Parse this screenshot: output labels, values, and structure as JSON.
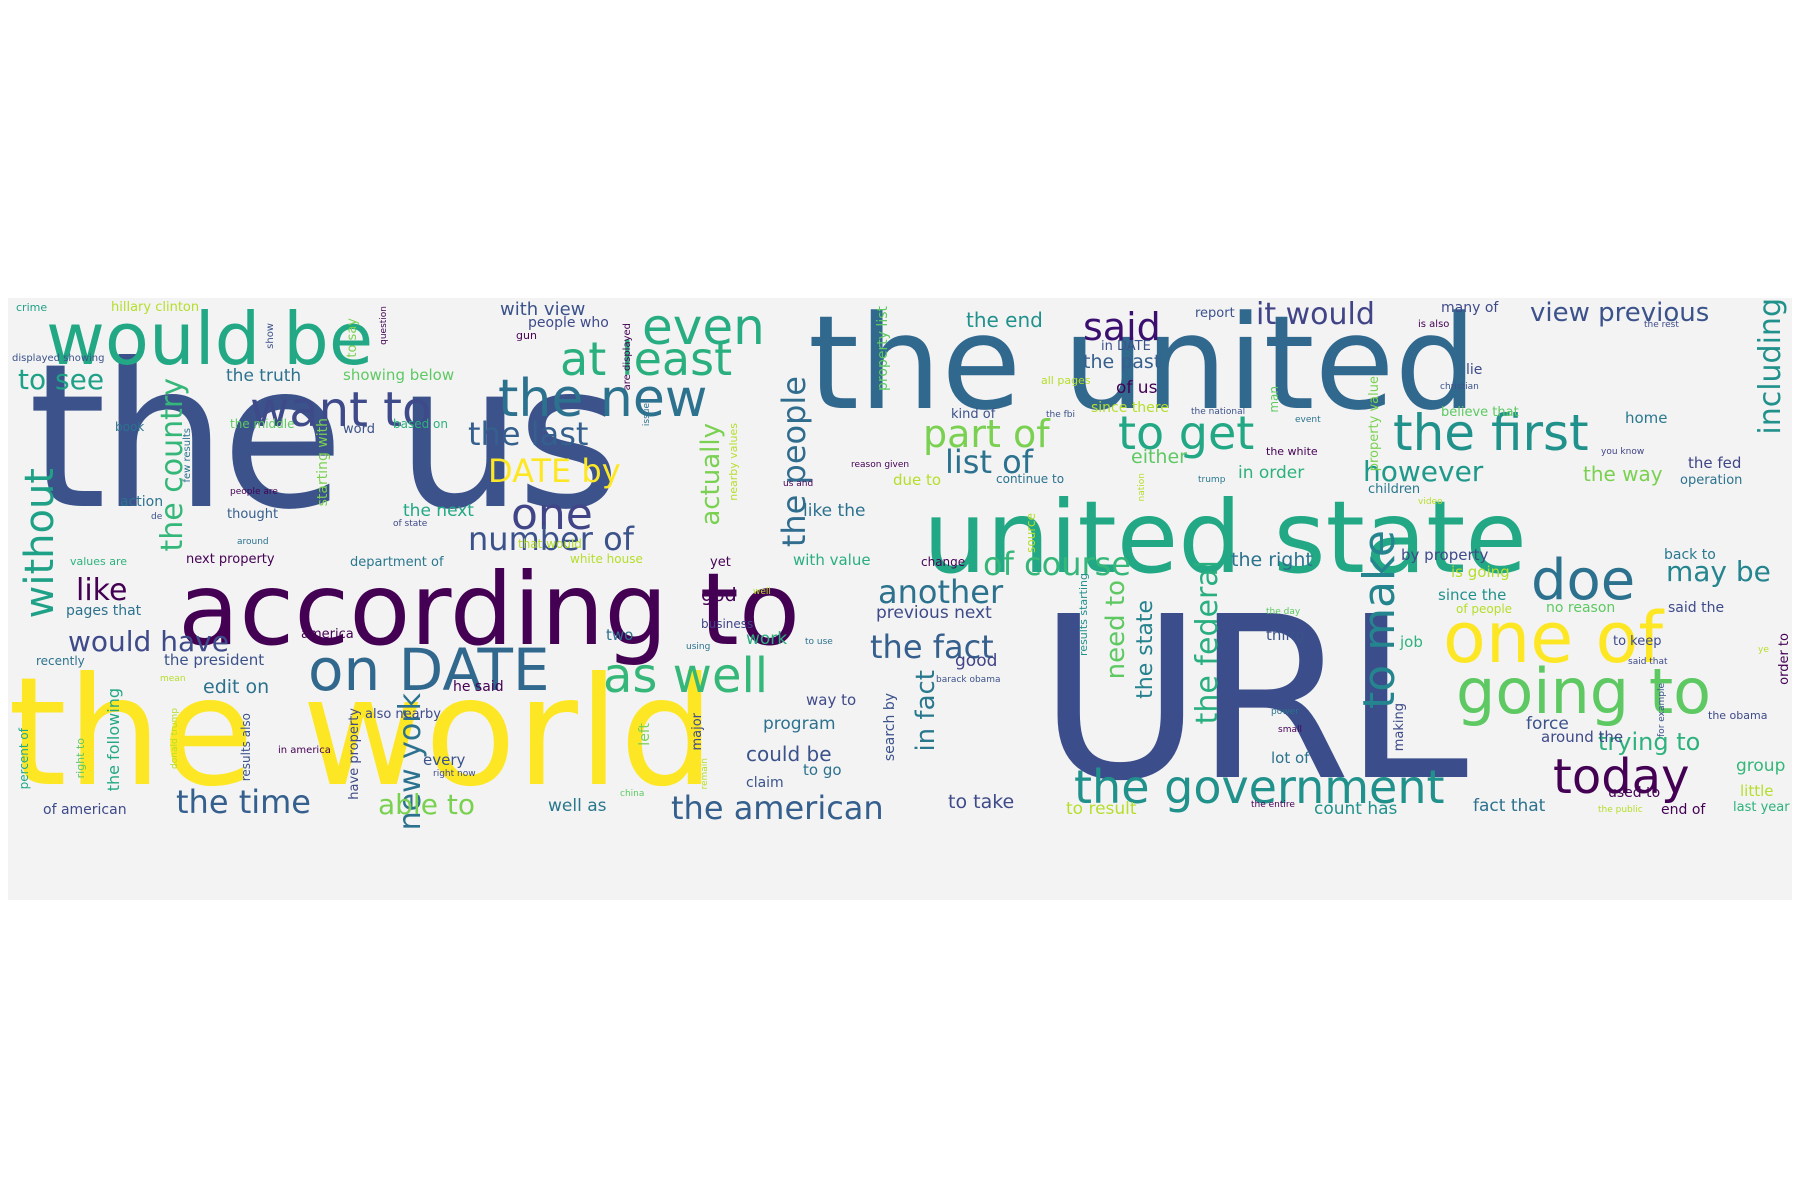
{
  "palette": {
    "yellow": "#fde725",
    "green_light": "#7ad151",
    "green": "#22a884",
    "teal": "#2a788e",
    "blue": "#414487",
    "purple": "#440154",
    "background": "#f3f3f3"
  },
  "words": {
    "the_us": "the us",
    "url": "URL",
    "the_world": "the world",
    "the_united": "the united",
    "according_to": "according to",
    "united_state": "united state",
    "would_be": "would be",
    "one_of": "one of",
    "on_date": "on DATE",
    "going_to": "going to",
    "the_new": "the new",
    "the_government": "the government",
    "even": "even",
    "want_to": "want to",
    "doe": "doe",
    "as_well": "as well",
    "at_least": "at least",
    "the_first": "the first",
    "to_get": "to get",
    "to_make": "to make",
    "one": "one",
    "today": "today",
    "part_of": "part of",
    "said": "said",
    "it_would": "it would",
    "the_fact": "the fact",
    "view_previous": "view previous",
    "the_american": "the american",
    "another": "another",
    "of_course": "of course",
    "the_people": "the people",
    "without": "without",
    "the_last": "the last",
    "number_of": "number of",
    "would_have": "would have",
    "the_time": "the time",
    "new_york": "new york",
    "list_of": "list of",
    "date_by": "DATE by",
    "able_to": "able to",
    "however": "however",
    "the_country": "the country",
    "including": "including",
    "the_federal": "the federal",
    "may_be": "may be",
    "to_see": "to see",
    "like": "like",
    "actually": "actually",
    "need_to": "need to",
    "in_fact": "in fact",
    "trying_to": "trying to",
    "the_state": "the state",
    "could_be": "could be",
    "with_view": "with view",
    "the_truth": "the truth",
    "showing_below": "showing below",
    "hillary_clinton": "hillary clinton",
    "crime": "crime",
    "to_say": "to say",
    "question": "question",
    "gun": "gun",
    "people_who": "people who",
    "are_displayed": "are displayed",
    "show": "show",
    "property_list": "property list",
    "the_end": "the end",
    "in_date": "in DATE",
    "the_past": "the past",
    "report": "report",
    "many_of": "many of",
    "is_also": "is also",
    "the_rest": "the rest",
    "displayed_showing": "displayed showing",
    "all_pages": "all pages",
    "of_us": "of us",
    "man": "man",
    "property_value": "property value",
    "christian": "christian",
    "lie": "lie",
    "book": "book",
    "the_middle": "the middle",
    "word": "word",
    "based_on": "based on",
    "issue": "issue",
    "since_there": "since there",
    "the_fbi": "the fbi",
    "the_national": "the national",
    "event": "event",
    "believe_that": "believe that",
    "home": "home",
    "kind_of": "kind of",
    "nearby_values": "nearby values",
    "the_white": "the white",
    "you_know": "you know",
    "the_fed": "the fed",
    "operation": "operation",
    "the_way": "the way",
    "reason_given": "reason given",
    "due_to": "due to",
    "continue_to": "continue to",
    "either": "either",
    "in_order": "in order",
    "trump": "trump",
    "nation": "nation",
    "children": "children",
    "video": "video",
    "action": "action",
    "people_are": "people are",
    "us_and": "us and",
    "starting_with": "starting with",
    "de": "de",
    "thought": "thought",
    "of_state": "of state",
    "the_next": "the next",
    "like_the": "like the",
    "around": "around",
    "that_would": "that would",
    "values_are": "values are",
    "next_property": "next property",
    "department_of": "department of",
    "white_house": "white house",
    "yet": "yet",
    "with_value": "with value",
    "change": "change",
    "source": "source",
    "the_right": "the right",
    "by_property": "by property",
    "back_to": "back to",
    "few_results": "few results",
    "results_starting": "results starting",
    "since_the": "since the",
    "is_going": "is going",
    "said_the": "said the",
    "pages_that": "pages that",
    "god": "god",
    "previous_next": "previous next",
    "of_people": "of people",
    "no_reason": "no reason",
    "business": "business",
    "well": "well",
    "the_day": "the day",
    "america": "america",
    "two": "two",
    "work": "work",
    "using": "using",
    "to_use": "to use",
    "thing": "thing",
    "job": "job",
    "to_keep": "to keep",
    "recently": "recently",
    "the_president": "the president",
    "good": "good",
    "barack_obama": "barack obama",
    "mean": "mean",
    "said_that": "said that",
    "for_example": "for example",
    "order_to": "order to",
    "ye": "ye",
    "the_following": "the following",
    "edit_on": "edit on",
    "he_said": "he said",
    "way_to": "way to",
    "search_by": "search by",
    "right_to": "right to",
    "have_property": "have property",
    "also_nearby": "also nearby",
    "left": "left",
    "major": "major",
    "program": "program",
    "power": "power",
    "force": "force",
    "making": "making",
    "around_the": "around the",
    "the_obama": "the obama",
    "results_also": "results also",
    "donald_trump": "donald trump",
    "in_america": "in america",
    "remain": "remain",
    "small": "small",
    "percent_of": "percent of",
    "every": "every",
    "right_now": "right now",
    "to_go": "to go",
    "claim": "claim",
    "lot_of": "lot of",
    "group": "group",
    "little": "little",
    "of_american": "of american",
    "well_as": "well as",
    "china": "china",
    "to_take": "to take",
    "to_result": "to result",
    "the_entire": "the entire",
    "count_has": "count has",
    "fact_that": "fact that",
    "the_public": "the public",
    "end_of": "end of",
    "used_to": "used to",
    "last_year": "last year"
  }
}
